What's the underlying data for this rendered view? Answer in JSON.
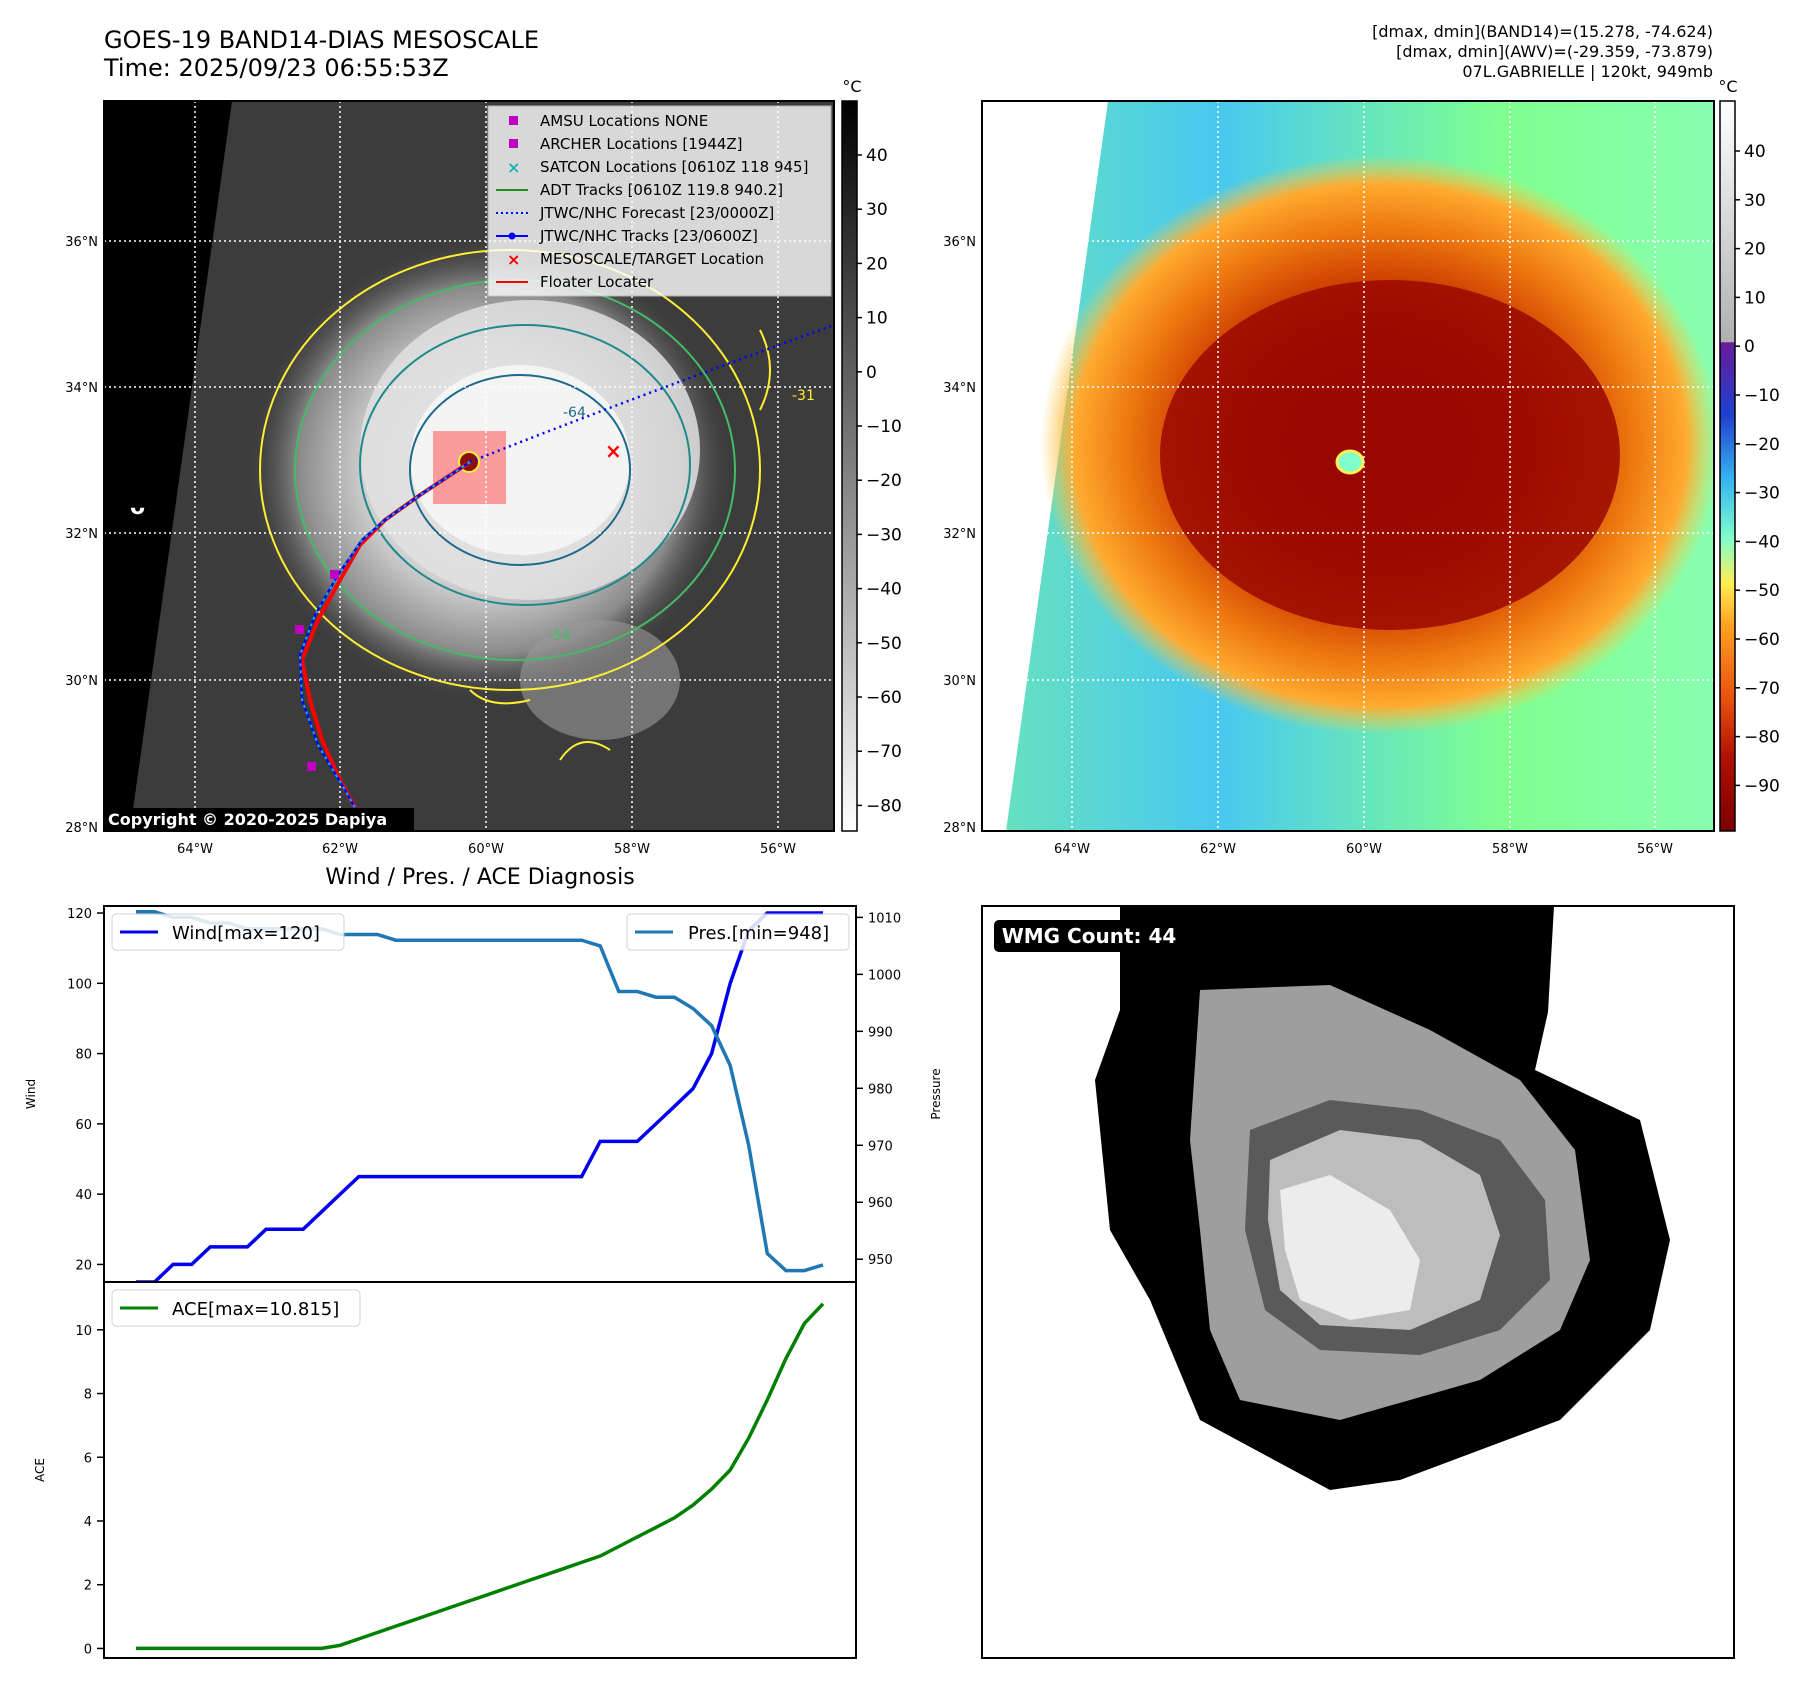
{
  "header": {
    "title_line1": "GOES-19 BAND14-DIAS MESOSCALE",
    "title_line2": "Time: 2025/09/23 06:55:53Z",
    "diag_line1": "[dmax, dmin](BAND14)=(15.278, -74.624)",
    "diag_line2": "[dmax, dmin](AWV)=(-29.359, -73.879)",
    "diag_line3": "07L.GABRIELLE | 120kt, 949mb"
  },
  "maps": {
    "lon_ticks": [
      "64°W",
      "62°W",
      "60°W",
      "58°W",
      "56°W"
    ],
    "lat_ticks": [
      "36°N",
      "34°N",
      "32°N",
      "30°N",
      "28°N"
    ],
    "cbar_unit": "°C",
    "left_cbar_ticks": [
      "40",
      "30",
      "20",
      "10",
      "0",
      "−10",
      "−20",
      "−30",
      "−40",
      "−50",
      "−60",
      "−70",
      "−80"
    ],
    "right_cbar_ticks": [
      "40",
      "30",
      "20",
      "10",
      "0",
      "−10",
      "−20",
      "−30",
      "−40",
      "−50",
      "−60",
      "−70",
      "−80",
      "−90"
    ],
    "copyright": "Copyright © 2020-2025 Dapiya",
    "contour_labels": [
      "-64",
      "-54",
      "-31"
    ],
    "legend": [
      {
        "label": "AMSU Locations NONE",
        "marker": "square",
        "color": "#c000c0"
      },
      {
        "label": "ARCHER Locations [1944Z]",
        "marker": "square",
        "color": "#c000c0"
      },
      {
        "label": "SATCON Locations [0610Z 118 945]",
        "marker": "x",
        "color": "#17b4b4"
      },
      {
        "label": "ADT Tracks [0610Z 119.8 940.2]",
        "marker": "line",
        "color": "#1a8f1a"
      },
      {
        "label": "JTWC/NHC Forecast [23/0000Z]",
        "marker": "dotted",
        "color": "#0000ff"
      },
      {
        "label": "JTWC/NHC Tracks [23/0600Z]",
        "marker": "dotline",
        "color": "#0000ff"
      },
      {
        "label": "MESOSCALE/TARGET Location",
        "marker": "x",
        "color": "#ff0000"
      },
      {
        "label": "Floater Locater",
        "marker": "line",
        "color": "#ff0000"
      }
    ],
    "colors": {
      "jtwc": "#0000ff",
      "floater": "#ff0000",
      "contour_yellow": "#ffee33",
      "contour_green": "#44bb66",
      "contour_teal": "#1f8a8a"
    }
  },
  "chart_data": [
    {
      "type": "line",
      "title": "Wind / Pres. / ACE Diagnosis",
      "x": [
        0,
        1,
        2,
        3,
        4,
        5,
        6,
        7,
        8,
        9,
        10,
        11,
        12,
        13,
        14,
        15,
        16,
        17,
        18,
        19,
        20,
        21,
        22,
        23,
        24,
        25,
        26,
        27,
        28,
        29,
        30,
        31,
        32,
        33,
        34,
        35,
        36,
        37
      ],
      "ylabel": "Wind",
      "y2label": "Pressure",
      "ylim": [
        15,
        122
      ],
      "y2lim": [
        946,
        1012
      ],
      "yticks": [
        20,
        40,
        60,
        80,
        100,
        120
      ],
      "y2ticks": [
        950,
        960,
        970,
        980,
        990,
        1000,
        1010
      ],
      "series": [
        {
          "name": "Wind",
          "legend": "Wind[max=120]",
          "color": "#0000ee",
          "axis": "left",
          "values": [
            15,
            15,
            20,
            20,
            25,
            25,
            25,
            30,
            30,
            30,
            35,
            40,
            45,
            45,
            45,
            45,
            45,
            45,
            45,
            45,
            45,
            45,
            45,
            45,
            45,
            55,
            55,
            55,
            60,
            65,
            70,
            80,
            100,
            115,
            120,
            120,
            120,
            120
          ]
        },
        {
          "name": "Pres.",
          "legend": "Pres.[min=948]",
          "color": "#1f77b4",
          "axis": "right",
          "values": [
            1011,
            1011,
            1010,
            1010,
            1009,
            1009,
            1008,
            1008,
            1008,
            1008,
            1008,
            1007,
            1007,
            1007,
            1006,
            1006,
            1006,
            1006,
            1006,
            1006,
            1006,
            1006,
            1006,
            1006,
            1006,
            1005,
            997,
            997,
            996,
            996,
            994,
            991,
            984,
            970,
            951,
            948,
            948,
            949
          ]
        }
      ]
    },
    {
      "type": "line",
      "x": [
        0,
        1,
        2,
        3,
        4,
        5,
        6,
        7,
        8,
        9,
        10,
        11,
        12,
        13,
        14,
        15,
        16,
        17,
        18,
        19,
        20,
        21,
        22,
        23,
        24,
        25,
        26,
        27,
        28,
        29,
        30,
        31,
        32,
        33,
        34,
        35,
        36,
        37
      ],
      "ylabel": "ACE",
      "ylim": [
        -0.3,
        11.5
      ],
      "yticks": [
        0,
        2,
        4,
        6,
        8,
        10
      ],
      "series": [
        {
          "name": "ACE",
          "legend": "ACE[max=10.815]",
          "color": "#008000",
          "values": [
            0,
            0,
            0,
            0,
            0,
            0,
            0,
            0,
            0,
            0,
            0,
            0.1,
            0.3,
            0.5,
            0.7,
            0.9,
            1.1,
            1.3,
            1.5,
            1.7,
            1.9,
            2.1,
            2.3,
            2.5,
            2.7,
            2.9,
            3.2,
            3.5,
            3.8,
            4.1,
            4.5,
            5.0,
            5.6,
            6.6,
            7.8,
            9.1,
            10.2,
            10.815
          ]
        }
      ]
    }
  ],
  "wmg": {
    "label": "WMG Count: 44"
  }
}
